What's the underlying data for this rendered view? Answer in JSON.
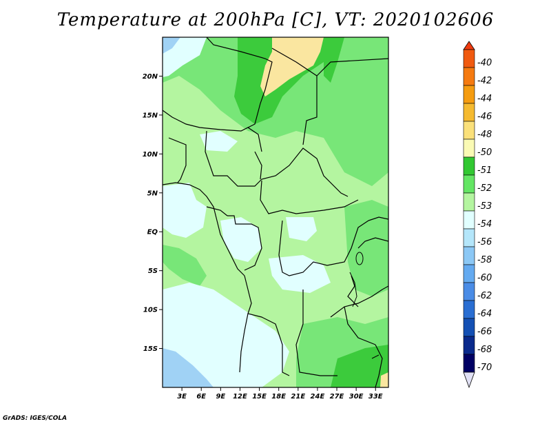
{
  "title": "Temperature at 200hPa [C], VT: 2020102606",
  "credit": "GrADS: IGES/COLA",
  "map": {
    "lat_labels": [
      "20N",
      "15N",
      "10N",
      "5N",
      "EQ",
      "5S",
      "10S",
      "15S"
    ],
    "lat_values": [
      20,
      15,
      10,
      5,
      0,
      -5,
      -10,
      -15
    ],
    "lon_labels": [
      "3E",
      "6E",
      "9E",
      "12E",
      "15E",
      "18E",
      "21E",
      "24E",
      "27E",
      "30E",
      "33E"
    ],
    "lon_values": [
      3,
      6,
      9,
      12,
      15,
      18,
      21,
      24,
      27,
      30,
      33
    ],
    "lon_range": [
      0,
      35
    ],
    "lat_range": [
      -20,
      25
    ]
  },
  "colorbar": {
    "labels": [
      "-40",
      "-42",
      "-44",
      "-46",
      "-48",
      "-50",
      "-51",
      "-52",
      "-53",
      "-54",
      "-56",
      "-58",
      "-60",
      "-62",
      "-64",
      "-66",
      "-68",
      "-70"
    ],
    "colors": [
      "#f03c10",
      "#f05a10",
      "#f57a10",
      "#f59c10",
      "#f5ba30",
      "#fae07a",
      "#fafab4",
      "#32c832",
      "#64e664",
      "#b4f5a0",
      "#e1ffff",
      "#b4e6fa",
      "#8cc8f5",
      "#64aaf0",
      "#4a8ce6",
      "#2a6ed2",
      "#1450b4",
      "#0a2a8c",
      "#000064",
      "#e1e1f5"
    ]
  },
  "legend_colors": {
    "pale_yellow": "#fae6a0",
    "green_dark": "#3ccb3c",
    "green_mid": "#78e678",
    "green_light": "#b4f5a0",
    "cyan_pale": "#e1ffff",
    "sky_blue": "#a0d2f5"
  }
}
